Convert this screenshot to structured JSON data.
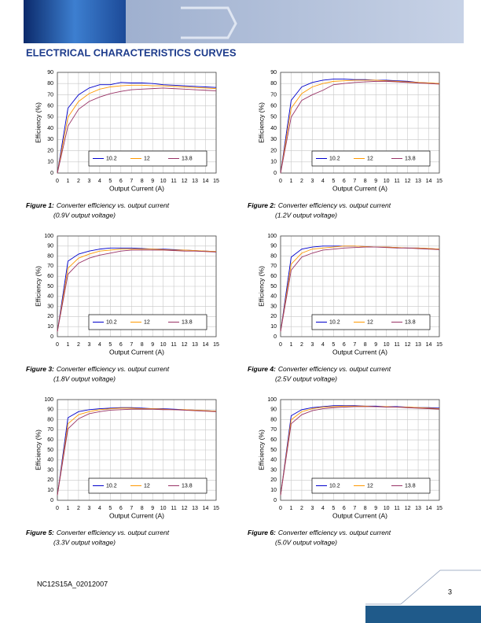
{
  "header": {
    "title": "ELECTRICAL CHARACTERISTICS CURVES"
  },
  "chart_data": [
    {
      "type": "line",
      "figure_label": "Figure 1:",
      "caption": "Converter efficiency vs. output current",
      "subcaption": "(0.9V output voltage)",
      "x_label": "Output Current (A)",
      "y_label": "Efficiency (%)",
      "x": [
        0,
        1,
        2,
        3,
        4,
        5,
        6,
        7,
        8,
        9,
        10,
        11,
        12,
        13,
        14,
        15
      ],
      "xlim": [
        0,
        15
      ],
      "xticks": [
        0,
        1,
        2,
        3,
        4,
        5,
        6,
        7,
        8,
        9,
        10,
        11,
        12,
        13,
        14,
        15
      ],
      "ylim": [
        0,
        90
      ],
      "yticks": [
        0,
        10,
        20,
        30,
        40,
        50,
        60,
        70,
        80,
        90
      ],
      "grid": true,
      "legend": "lower center",
      "series": [
        {
          "name": "10.2",
          "color": "#0000cc",
          "values": [
            0,
            58,
            70,
            76,
            79,
            79,
            81,
            80.5,
            80.5,
            80,
            79,
            78.5,
            78,
            77.5,
            77,
            76.5
          ]
        },
        {
          "name": "12",
          "color": "#ff9900",
          "values": [
            0,
            50,
            64,
            71,
            75,
            77,
            78,
            78.5,
            78.5,
            78,
            78,
            77.5,
            77,
            76.5,
            76,
            75.5
          ]
        },
        {
          "name": "13.8",
          "color": "#993366",
          "values": [
            0,
            42,
            57,
            64,
            68,
            71,
            73,
            74.5,
            75,
            75.5,
            76,
            75.5,
            75,
            74.5,
            74,
            73.5
          ]
        }
      ]
    },
    {
      "type": "line",
      "figure_label": "Figure 2:",
      "caption": "Converter efficiency vs. output current",
      "subcaption": "(1.2V output voltage)",
      "x_label": "Output Current (A)",
      "y_label": "Efficiency (%)",
      "x": [
        0,
        1,
        2,
        3,
        4,
        5,
        6,
        7,
        8,
        9,
        10,
        11,
        12,
        13,
        14,
        15
      ],
      "xlim": [
        0,
        15
      ],
      "xticks": [
        0,
        1,
        2,
        3,
        4,
        5,
        6,
        7,
        8,
        9,
        10,
        11,
        12,
        13,
        14,
        15
      ],
      "ylim": [
        0,
        90
      ],
      "yticks": [
        0,
        10,
        20,
        30,
        40,
        50,
        60,
        70,
        80,
        90
      ],
      "grid": true,
      "legend": "lower center",
      "series": [
        {
          "name": "10.2",
          "color": "#0000cc",
          "values": [
            0,
            65,
            77,
            81,
            83,
            84,
            84,
            83.5,
            83.5,
            83,
            83,
            82.5,
            82,
            81,
            80.5,
            80
          ]
        },
        {
          "name": "12",
          "color": "#ff9900",
          "values": [
            0,
            58,
            71,
            77,
            80,
            82,
            82.5,
            83,
            83,
            83,
            82.5,
            82,
            81.5,
            81,
            80.5,
            80
          ]
        },
        {
          "name": "13.8",
          "color": "#993366",
          "values": [
            0,
            50,
            65,
            70,
            74,
            79,
            80,
            81,
            81.5,
            82,
            82,
            81.5,
            81,
            80.5,
            80,
            79.5
          ]
        }
      ]
    },
    {
      "type": "line",
      "figure_label": "Figure 3:",
      "caption": "Converter efficiency vs. output current",
      "subcaption": "(1.8V output voltage)",
      "x_label": "Output Current (A)",
      "y_label": "Efficiency (%)",
      "x": [
        0,
        1,
        2,
        3,
        4,
        5,
        6,
        7,
        8,
        9,
        10,
        11,
        12,
        13,
        14,
        15
      ],
      "xlim": [
        0,
        15
      ],
      "xticks": [
        0,
        1,
        2,
        3,
        4,
        5,
        6,
        7,
        8,
        9,
        10,
        11,
        12,
        13,
        14,
        15
      ],
      "ylim": [
        0,
        100
      ],
      "yticks": [
        0,
        10,
        20,
        30,
        40,
        50,
        60,
        70,
        80,
        90,
        100
      ],
      "grid": true,
      "legend": "lower center",
      "series": [
        {
          "name": "10.2",
          "color": "#0000cc",
          "values": [
            5,
            75,
            82,
            85,
            87,
            88,
            88,
            88,
            87.5,
            87,
            87,
            86.5,
            86,
            85.5,
            85,
            84.5
          ]
        },
        {
          "name": "12",
          "color": "#ff9900",
          "values": [
            5,
            68,
            78,
            82,
            85,
            86,
            87,
            87,
            87,
            87,
            86.5,
            86,
            86,
            85.5,
            85,
            84.5
          ]
        },
        {
          "name": "13.8",
          "color": "#993366",
          "values": [
            5,
            62,
            73,
            78,
            81,
            83,
            85,
            86,
            86,
            86,
            86,
            85.5,
            85,
            85,
            84.5,
            84
          ]
        }
      ]
    },
    {
      "type": "line",
      "figure_label": "Figure 4:",
      "caption": "Converter efficiency vs. output current",
      "subcaption": "(2.5V output voltage)",
      "x_label": "Output Current (A)",
      "y_label": "Efficiency (%)",
      "x": [
        0,
        1,
        2,
        3,
        4,
        5,
        6,
        7,
        8,
        9,
        10,
        11,
        12,
        13,
        14,
        15
      ],
      "xlim": [
        0,
        15
      ],
      "xticks": [
        0,
        1,
        2,
        3,
        4,
        5,
        6,
        7,
        8,
        9,
        10,
        11,
        12,
        13,
        14,
        15
      ],
      "ylim": [
        0,
        100
      ],
      "yticks": [
        0,
        10,
        20,
        30,
        40,
        50,
        60,
        70,
        80,
        90,
        100
      ],
      "grid": true,
      "legend": "lower center",
      "series": [
        {
          "name": "10.2",
          "color": "#0000cc",
          "values": [
            5,
            79,
            87,
            89,
            90,
            90,
            90,
            90,
            89.5,
            89,
            89,
            88.5,
            88,
            88,
            87.5,
            87
          ]
        },
        {
          "name": "12",
          "color": "#ff9900",
          "values": [
            5,
            72,
            83,
            87,
            88,
            89,
            90,
            90,
            89.5,
            89,
            89,
            88.5,
            88,
            88,
            87.5,
            87
          ]
        },
        {
          "name": "13.8",
          "color": "#993366",
          "values": [
            5,
            66,
            79,
            83,
            86,
            87,
            88,
            88.5,
            89,
            89,
            88.5,
            88,
            88,
            87.5,
            87,
            86.5
          ]
        }
      ]
    },
    {
      "type": "line",
      "figure_label": "Figure 5:",
      "caption": "Converter efficiency vs. output current",
      "subcaption": "(3.3V output voltage)",
      "x_label": "Output Current (A)",
      "y_label": "Efficiency (%)",
      "x": [
        0,
        1,
        2,
        3,
        4,
        5,
        6,
        7,
        8,
        9,
        10,
        11,
        12,
        13,
        14,
        15
      ],
      "xlim": [
        0,
        15
      ],
      "xticks": [
        0,
        1,
        2,
        3,
        4,
        5,
        6,
        7,
        8,
        9,
        10,
        11,
        12,
        13,
        14,
        15
      ],
      "ylim": [
        0,
        100
      ],
      "yticks": [
        0,
        10,
        20,
        30,
        40,
        50,
        60,
        70,
        80,
        90,
        100
      ],
      "grid": true,
      "legend": "lower center",
      "series": [
        {
          "name": "10.2",
          "color": "#0000cc",
          "values": [
            5,
            82,
            88,
            90,
            91,
            91.5,
            92,
            92,
            91.5,
            91,
            91,
            90.5,
            90,
            89.5,
            89,
            88.5
          ]
        },
        {
          "name": "12",
          "color": "#ff9900",
          "values": [
            5,
            76,
            85,
            88,
            90,
            91,
            91.5,
            91.5,
            91,
            91,
            90.5,
            90,
            90,
            89.5,
            89,
            88.5
          ]
        },
        {
          "name": "13.8",
          "color": "#993366",
          "values": [
            5,
            71,
            81,
            86,
            88,
            89.5,
            90,
            90.5,
            90.5,
            90.5,
            90,
            90,
            89.5,
            89,
            88.5,
            88
          ]
        }
      ]
    },
    {
      "type": "line",
      "figure_label": "Figure 6:",
      "caption": "Converter efficiency vs. output current",
      "subcaption": "(5.0V output voltage)",
      "x_label": "Output Current (A)",
      "y_label": "Efficiency (%)",
      "x": [
        0,
        1,
        2,
        3,
        4,
        5,
        6,
        7,
        8,
        9,
        10,
        11,
        12,
        13,
        14,
        15
      ],
      "xlim": [
        0,
        15
      ],
      "xticks": [
        0,
        1,
        2,
        3,
        4,
        5,
        6,
        7,
        8,
        9,
        10,
        11,
        12,
        13,
        14,
        15
      ],
      "ylim": [
        0,
        100
      ],
      "yticks": [
        0,
        10,
        20,
        30,
        40,
        50,
        60,
        70,
        80,
        90,
        100
      ],
      "grid": true,
      "legend": "lower center",
      "series": [
        {
          "name": "10.2",
          "color": "#0000cc",
          "values": [
            5,
            84,
            90,
            92,
            93,
            94,
            94,
            94,
            93.5,
            93.5,
            93,
            93,
            92.5,
            92,
            92,
            91.5
          ]
        },
        {
          "name": "12",
          "color": "#ff9900",
          "values": [
            5,
            80,
            88,
            91,
            92.5,
            93,
            93.5,
            93.5,
            93.5,
            93,
            93,
            92.5,
            92.5,
            92,
            91.5,
            91
          ]
        },
        {
          "name": "13.8",
          "color": "#993366",
          "values": [
            5,
            76,
            85,
            89,
            91,
            92,
            92.5,
            93,
            93,
            93,
            92.5,
            92.5,
            92,
            91.5,
            91,
            90.5
          ]
        }
      ]
    }
  ],
  "footer": {
    "doc_id": "NC12S15A_02012007",
    "page": "3"
  }
}
